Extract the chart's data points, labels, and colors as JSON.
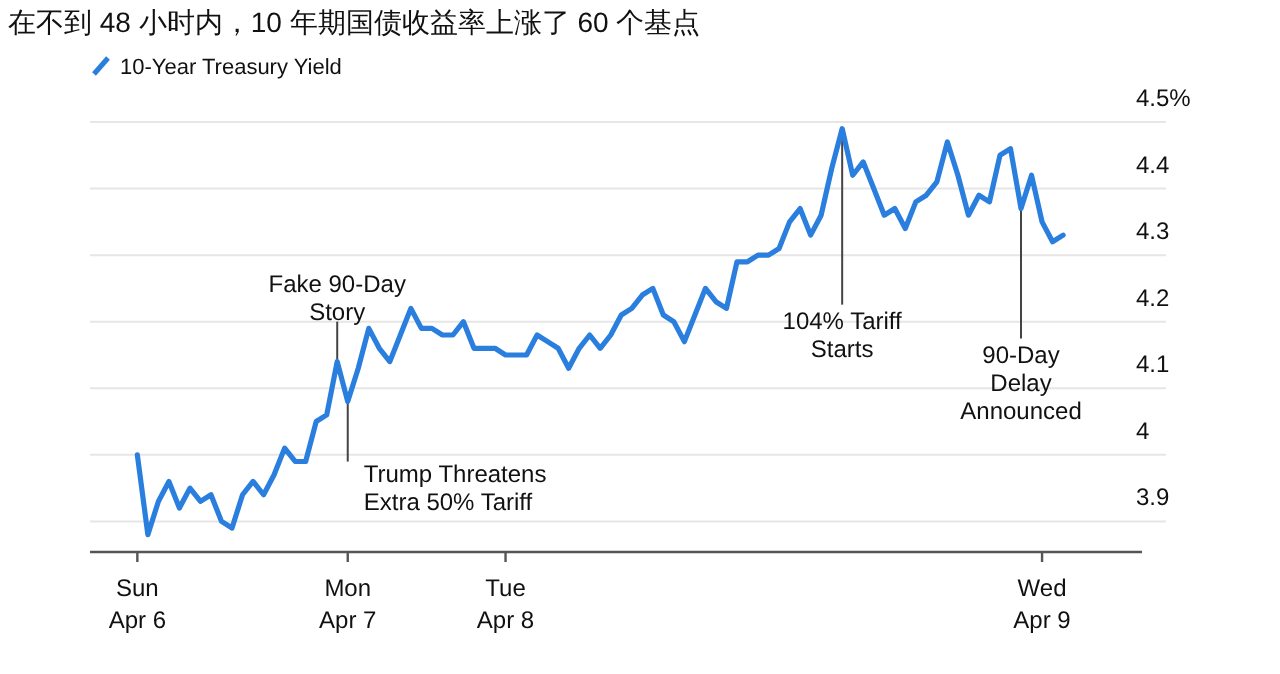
{
  "chart_data": {
    "type": "line",
    "title": "在不到 48 小时内，10 年期国债收益率上涨了 60 个基点",
    "categories": [
      null,
      null,
      null,
      null,
      "Sun\nApr 6",
      null,
      null,
      null,
      null,
      null,
      null,
      null,
      null,
      null,
      null,
      null,
      null,
      null,
      null,
      null,
      null,
      null,
      null,
      null,
      "Mon\nApr 7",
      null,
      null,
      null,
      null,
      null,
      null,
      null,
      null,
      null,
      null,
      null,
      null,
      null,
      null,
      "Tue\nApr 8",
      null,
      null,
      null,
      null,
      null,
      null,
      null,
      null,
      null,
      null,
      null,
      null,
      null,
      null,
      null,
      null,
      null,
      null,
      null,
      null,
      null,
      null,
      null,
      null,
      null,
      null,
      null,
      null,
      null,
      null,
      null,
      null,
      null,
      null,
      null,
      null,
      null,
      null,
      null,
      null,
      null,
      null,
      null,
      null,
      null,
      null,
      null,
      null,
      null,
      null,
      "Wed\nApr 9",
      null,
      null,
      null,
      null,
      null,
      null,
      null,
      null,
      null
    ],
    "ylim": [
      3.854,
      4.5
    ],
    "yticks": [
      3.9,
      4.0,
      4.1,
      4.2,
      4.3,
      4.4,
      {
        "value": 4.5,
        "label": "4.5%"
      }
    ],
    "grid": "y",
    "legend": "top left",
    "line_style": "solid",
    "series": [
      {
        "name": "10-Year Treasury Yield",
        "color": "#2a7fde",
        "values": [
          null,
          null,
          null,
          null,
          4.0,
          3.88,
          3.93,
          3.96,
          3.92,
          3.95,
          3.93,
          3.94,
          3.9,
          3.89,
          3.94,
          3.96,
          3.94,
          3.97,
          4.01,
          3.99,
          3.99,
          4.05,
          4.06,
          4.14,
          4.08,
          4.13,
          4.19,
          4.16,
          4.14,
          4.18,
          4.22,
          4.19,
          4.19,
          4.18,
          4.18,
          4.2,
          4.16,
          4.16,
          4.16,
          4.15,
          4.15,
          4.15,
          4.18,
          4.17,
          4.16,
          4.13,
          4.16,
          4.18,
          4.16,
          4.18,
          4.21,
          4.22,
          4.24,
          4.25,
          4.21,
          4.2,
          4.17,
          4.21,
          4.25,
          4.23,
          4.22,
          4.29,
          4.29,
          4.3,
          4.3,
          4.31,
          4.35,
          4.37,
          4.33,
          4.36,
          4.43,
          4.49,
          4.42,
          4.44,
          4.4,
          4.36,
          4.37,
          4.34,
          4.38,
          4.39,
          4.41,
          4.47,
          4.42,
          4.36,
          4.39,
          4.38,
          4.45,
          4.46,
          4.37,
          4.42,
          4.35,
          4.32,
          4.33,
          null,
          null,
          null,
          null,
          null,
          null,
          null
        ]
      }
    ],
    "annotations": [
      {
        "text": "Fake 90-Day\nStory",
        "y": 4.14
      },
      "Trump Threatens\nExtra 50% Tariff",
      {
        "text": "104% Tariff\nStarts",
        "y": 4.49
      },
      {
        "text": "90-Day\nDelay\nAnnounced",
        "y": 4.37
      }
    ]
  }
}
